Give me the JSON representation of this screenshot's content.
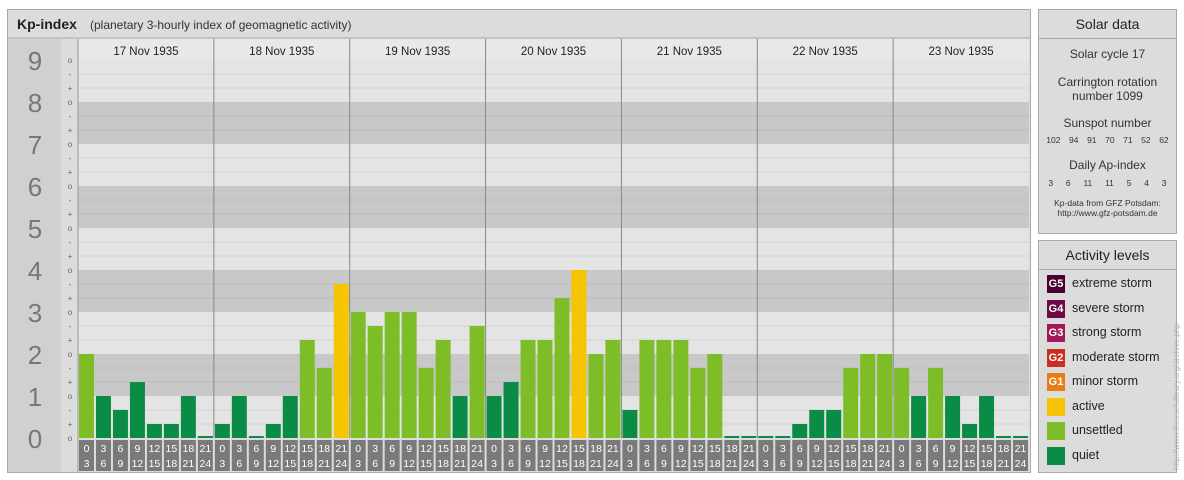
{
  "header": {
    "title": "Kp-index",
    "subtitle": "(planetary 3-hourly index of geomagnetic activity)"
  },
  "chart_data": {
    "type": "bar",
    "ylim": [
      0,
      9
    ],
    "y_ticks": [
      "0",
      "1",
      "2",
      "3",
      "4",
      "5",
      "6",
      "7",
      "8",
      "9"
    ],
    "sub_ticks": [
      "o",
      "+",
      "-"
    ],
    "days": [
      "17 Nov 1935",
      "18 Nov 1935",
      "19 Nov 1935",
      "20 Nov 1935",
      "21 Nov 1935",
      "22 Nov 1935",
      "23 Nov 1935"
    ],
    "intervals": [
      {
        "top": "0",
        "bottom": "3"
      },
      {
        "top": "3",
        "bottom": "6"
      },
      {
        "top": "6",
        "bottom": "9"
      },
      {
        "top": "9",
        "bottom": "12"
      },
      {
        "top": "12",
        "bottom": "15"
      },
      {
        "top": "15",
        "bottom": "18"
      },
      {
        "top": "18",
        "bottom": "21"
      },
      {
        "top": "21",
        "bottom": "24"
      }
    ],
    "values": [
      2.0,
      1.0,
      0.667,
      1.333,
      0.333,
      0.333,
      1.0,
      0.0,
      0.333,
      1.0,
      0.0,
      0.333,
      1.0,
      2.333,
      1.667,
      3.667,
      3.0,
      2.667,
      3.0,
      3.0,
      1.667,
      2.333,
      1.0,
      2.667,
      1.0,
      1.333,
      2.333,
      2.333,
      3.333,
      4.0,
      2.0,
      2.333,
      0.667,
      2.333,
      2.333,
      2.333,
      1.667,
      2.0,
      0.0,
      0.0,
      0.0,
      0.0,
      0.333,
      0.667,
      0.667,
      1.667,
      2.0,
      2.0,
      1.667,
      1.0,
      1.667,
      1.0,
      0.333,
      1.0,
      0.0,
      0.0
    ]
  },
  "solar": {
    "title": "Solar data",
    "cycle": "Solar cycle 17",
    "carrington_line1": "Carrington rotation",
    "carrington_line2": "number 1099",
    "sunspot_label": "Sunspot number",
    "sunspot_values": [
      "102",
      "94",
      "91",
      "70",
      "71",
      "52",
      "62"
    ],
    "ap_label": "Daily Ap-index",
    "ap_values": [
      "3",
      "6",
      "11",
      "11",
      "5",
      "4",
      "3"
    ],
    "source_line1": "Kp-data from GFZ Potsdam:",
    "source_line2": "http://www.gfz-potsdam.de"
  },
  "activity": {
    "title": "Activity levels",
    "items": [
      {
        "code": "G5",
        "label": "extreme storm",
        "color": "#4a0032"
      },
      {
        "code": "G4",
        "label": "severe storm",
        "color": "#6e0a46"
      },
      {
        "code": "G3",
        "label": "strong storm",
        "color": "#a0185a"
      },
      {
        "code": "G2",
        "label": "moderate storm",
        "color": "#cc2d23"
      },
      {
        "code": "G1",
        "label": "minor storm",
        "color": "#e87d18"
      },
      {
        "code": "",
        "label": "active",
        "color": "#f6c400"
      },
      {
        "code": "",
        "label": "unsettled",
        "color": "#7dbe28"
      },
      {
        "code": "",
        "label": "quiet",
        "color": "#0a8c46"
      }
    ]
  },
  "watermark": "http://www.theusefulbrary.org/archive.php",
  "colors": {
    "quiet": "#0a8c46",
    "unsettled": "#7dbe28",
    "active": "#f6c400",
    "grid_dark": "#c8c8c8",
    "grid_light": "#e4e4e4"
  }
}
